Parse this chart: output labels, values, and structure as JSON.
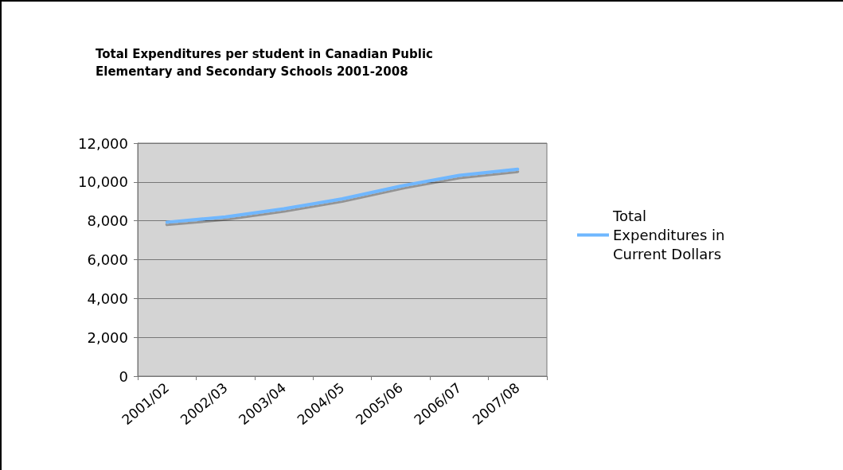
{
  "chart_data": {
    "type": "line",
    "title": "Total Expenditures per student in Canadian Public\nElementary and Secondary Schools 2001-2008",
    "categories": [
      "2001/02",
      "2002/03",
      "2003/04",
      "2004/05",
      "2005/06",
      "2006/07",
      "2007/08"
    ],
    "series": [
      {
        "name": "Total\nExpenditures in\nCurrent Dollars",
        "color": "#6fb7ff",
        "values": [
          7930,
          8200,
          8620,
          9130,
          9790,
          10340,
          10660
        ]
      }
    ],
    "ylim": [
      0,
      12000
    ],
    "yticks": [
      0,
      {
        "value": 2000,
        "label": "2,000"
      },
      {
        "value": 4000,
        "label": "4,000"
      },
      {
        "value": 6000,
        "label": "6,000"
      },
      {
        "value": 8000,
        "label": "8,000"
      },
      {
        "value": 10000,
        "label": "10,000"
      },
      {
        "value": 12000,
        "label": "12,000"
      }
    ],
    "grid": "y",
    "legend": "right",
    "marker": "none",
    "line_style": "solid"
  }
}
